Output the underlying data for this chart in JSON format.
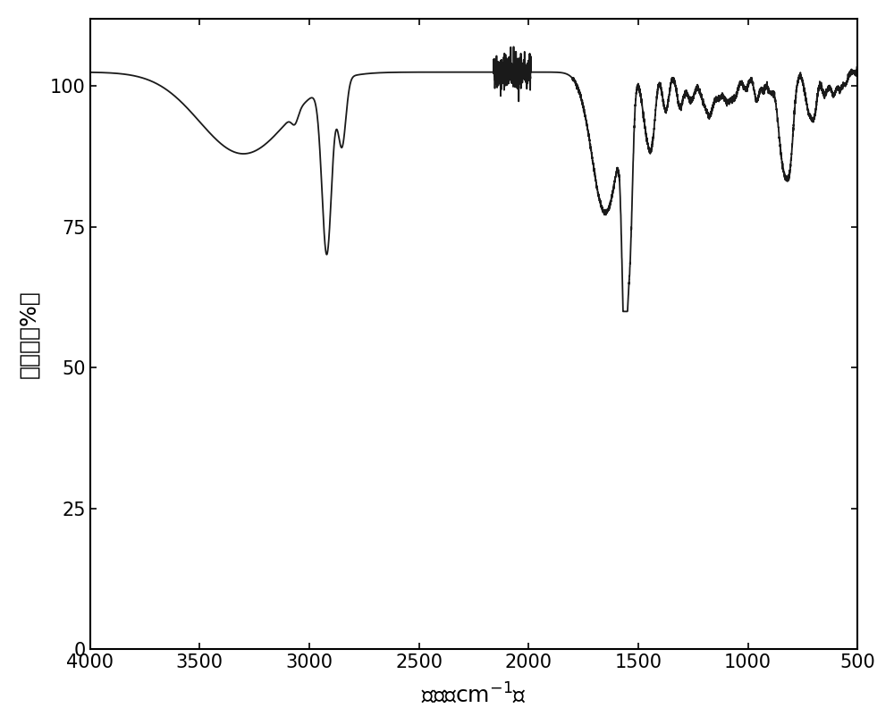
{
  "xlabel": "波数（cm-1）",
  "ylabel": "透过率（%）",
  "xlim": [
    4000,
    500
  ],
  "ylim": [
    0,
    112
  ],
  "yticks": [
    0,
    25,
    50,
    75,
    100
  ],
  "xticks": [
    4000,
    3500,
    3000,
    2500,
    2000,
    1500,
    1000,
    500
  ],
  "line_color": "#1a1a1a",
  "line_width": 1.3,
  "background_color": "#ffffff",
  "axis_fontsize": 18,
  "tick_fontsize": 15
}
